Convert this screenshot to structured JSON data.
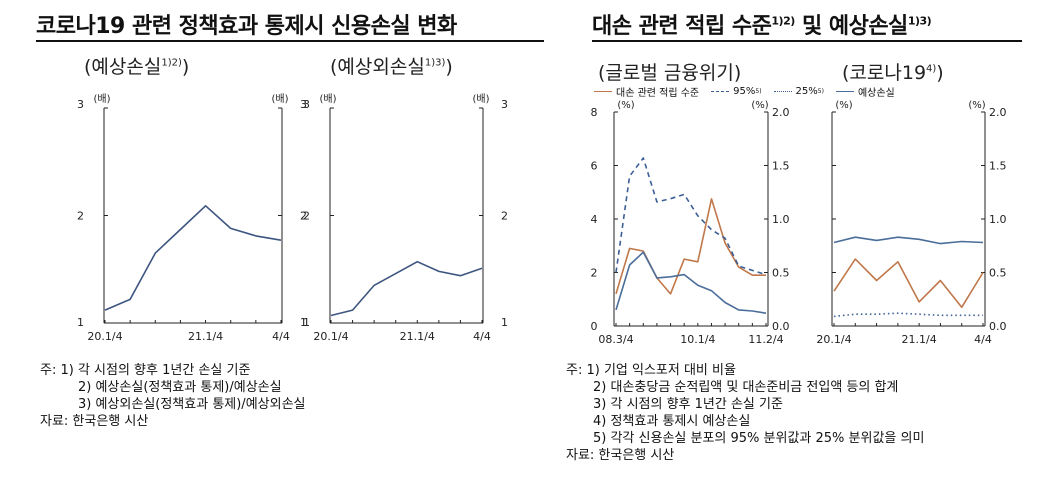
{
  "left": {
    "title": "코로나19 관련 정책효과 통제시 신용손실 변화",
    "panel1": {
      "subtitle": "(예상손실",
      "sup": "1)2)",
      "close": ")",
      "unit_left": "(배)",
      "unit_right": "(배)"
    },
    "panel2": {
      "subtitle": "(예상외손실",
      "sup": "1)3)",
      "close": ")",
      "unit_left": "(배)",
      "unit_right": "(배)"
    },
    "notes": [
      "주:  1)  각  시점의  향후  1년간  손실  기준",
      "2)  예상손실(정책효과  통제)/예상손실",
      "3)  예상외손실(정책효과  통제)/예상외손실",
      "자료:  한국은행  시산"
    ]
  },
  "right": {
    "title": "대손 관련 적립 수준",
    "title_sup1": "1)2)",
    "title_mid": " 및 예상손실",
    "title_sup2": "1)3)",
    "panel1": {
      "subtitle": "(글로벌 금융위기)",
      "unit_left": "(%)",
      "unit_right": "(%)"
    },
    "panel2": {
      "subtitle": "(코로나19",
      "sup": "4)",
      "close": ")",
      "unit_left": "(%)",
      "unit_right": "(%)"
    },
    "legend": [
      {
        "label": "대손 관련 적립 수준",
        "sup": "",
        "color": "#c0784a",
        "style": "solid"
      },
      {
        "label": "95%",
        "sup": "5)",
        "color": "#3d5f95",
        "style": "dashed"
      },
      {
        "label": "25%",
        "sup": "5)",
        "color": "#3d5f95",
        "style": "dotted"
      },
      {
        "label": "예상손실",
        "sup": "",
        "color": "#4a6d9a",
        "style": "solid"
      }
    ],
    "notes": [
      "주:  1)  기업  익스포저  대비  비율",
      "2)  대손충당금  순적립액  및  대손준비금  전입액  등의  합계",
      "3)  각  시점의  향후  1년간  손실  기준",
      "4)  정책효과  통제시  예상손실",
      "5)  각각  신용손실  분포의  95%  분위값과  25%  분위값을  의미",
      "자료:  한국은행  시산"
    ]
  },
  "chart_data": [
    {
      "type": "line",
      "title": "예상손실",
      "ylabel_left": "(배)",
      "ylabel_right": "(배)",
      "ylim": [
        1,
        3
      ],
      "yticks": [
        "1",
        "2",
        "3"
      ],
      "xticks": [
        "20.1/4",
        "21.1/4",
        "4/4"
      ],
      "series": [
        {
          "values": [
            1.12,
            1.22,
            1.65,
            1.87,
            2.09,
            1.88,
            1.81,
            1.77
          ],
          "color": "#3d5580"
        }
      ]
    },
    {
      "type": "line",
      "title": "예상외손실",
      "ylabel_left": "(배)",
      "ylabel_right": "(배)",
      "ylim": [
        1,
        3
      ],
      "yticks": [
        "1",
        "2",
        "3"
      ],
      "xticks": [
        "20.1/4",
        "21.1/4",
        "4/4"
      ],
      "series": [
        {
          "values": [
            1.07,
            1.12,
            1.35,
            1.46,
            1.57,
            1.48,
            1.44,
            1.51
          ],
          "color": "#3d5580"
        }
      ]
    },
    {
      "type": "line",
      "title": "글로벌 금융위기",
      "ylim_left": [
        0,
        8
      ],
      "ylim_right": [
        0,
        2
      ],
      "yticks_left": [
        "0",
        "2",
        "4",
        "6",
        "8"
      ],
      "yticks_right": [
        "0.0",
        "0.5",
        "1.0",
        "1.5",
        "2.0"
      ],
      "xticks": [
        "08.3/4",
        "10.1/4",
        "11.2/4"
      ],
      "series": [
        {
          "name": "대손 관련 적립 수준",
          "axis": "left",
          "values": [
            1.2,
            2.9,
            2.8,
            1.8,
            1.2,
            2.5,
            2.4,
            4.75,
            3.1,
            2.2,
            1.9,
            1.9
          ]
        },
        {
          "name": "95%",
          "axis": "right",
          "values": [
            0.5,
            1.4,
            1.57,
            1.16,
            1.19,
            1.23,
            1.03,
            0.9,
            0.82,
            0.56,
            0.52,
            0.48
          ]
        },
        {
          "name": "예상손실",
          "axis": "right",
          "values": [
            0.15,
            0.57,
            0.69,
            0.45,
            0.46,
            0.48,
            0.38,
            0.33,
            0.22,
            0.15,
            0.14,
            0.12
          ]
        }
      ]
    },
    {
      "type": "line",
      "title": "코로나19",
      "ylim_left": [
        0,
        8
      ],
      "ylim_right": [
        0,
        2
      ],
      "yticks_right": [
        "0.0",
        "0.5",
        "1.0",
        "1.5",
        "2.0"
      ],
      "xticks": [
        "20.1/4",
        "21.1/4",
        "4/4"
      ],
      "series": [
        {
          "name": "대손 관련 적립 수준",
          "axis": "left",
          "values": [
            1.3,
            2.5,
            1.7,
            2.4,
            0.9,
            1.7,
            0.7,
            2.0
          ]
        },
        {
          "name": "25%",
          "axis": "right",
          "values": [
            0.09,
            0.11,
            0.11,
            0.12,
            0.11,
            0.1,
            0.1,
            0.1
          ]
        },
        {
          "name": "예상손실",
          "axis": "right",
          "values": [
            0.78,
            0.83,
            0.8,
            0.83,
            0.81,
            0.77,
            0.79,
            0.78
          ]
        }
      ]
    }
  ]
}
